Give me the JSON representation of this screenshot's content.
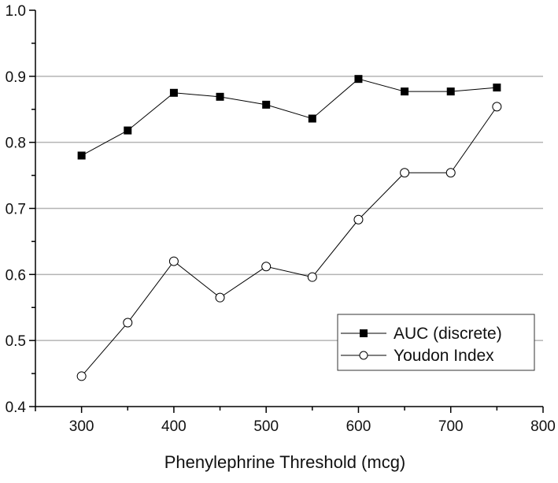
{
  "chart_data": {
    "type": "line",
    "title": "",
    "xlabel": "Phenylephrine Threshold (mcg)",
    "ylabel": "",
    "xlim": [
      250,
      800
    ],
    "ylim": [
      0.4,
      1.0
    ],
    "x_ticks": [
      300,
      400,
      500,
      600,
      700,
      800
    ],
    "x_minor_ticks": [
      350,
      450,
      550,
      650,
      750
    ],
    "y_ticks": [
      0.4,
      0.5,
      0.6,
      0.7,
      0.8,
      0.9,
      1.0
    ],
    "y_tick_labels": [
      "0.4",
      "0.5",
      "0.6",
      "0.7",
      "0.8",
      "0.9",
      "1.0"
    ],
    "y_minor_ticks": [
      0.45,
      0.55,
      0.65,
      0.75,
      0.85,
      0.95
    ],
    "grid": {
      "horizontal": [
        0.5,
        0.6,
        0.7,
        0.8,
        0.9
      ],
      "color": "#b4b4b4"
    },
    "x": [
      300,
      350,
      400,
      450,
      500,
      550,
      600,
      650,
      700,
      750
    ],
    "series": [
      {
        "name": "AUC (discrete)",
        "marker": "filled-square",
        "color": "#000000",
        "values": [
          0.78,
          0.818,
          0.875,
          0.869,
          0.857,
          0.836,
          0.896,
          0.877,
          0.877,
          0.883
        ]
      },
      {
        "name": "Youdon Index",
        "marker": "open-circle",
        "color": "#000000",
        "values": [
          0.446,
          0.527,
          0.62,
          0.565,
          0.612,
          0.596,
          0.683,
          0.754,
          0.754,
          0.854
        ]
      }
    ],
    "legend": {
      "position": "lower-right",
      "entries": [
        "AUC (discrete)",
        "Youdon Index"
      ]
    }
  }
}
